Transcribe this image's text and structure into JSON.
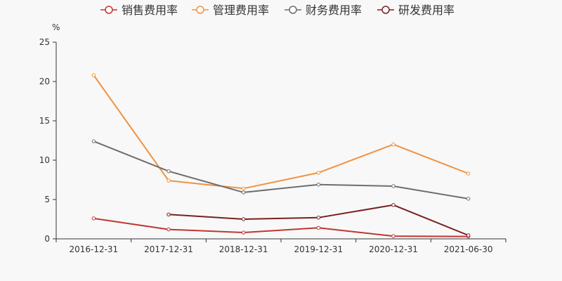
{
  "chart_data": {
    "type": "line",
    "ylabel": "%",
    "ylim": [
      0,
      25
    ],
    "yticks": [
      0,
      5,
      10,
      15,
      20,
      25
    ],
    "categories": [
      "2016-12-31",
      "2017-12-31",
      "2018-12-31",
      "2019-12-31",
      "2020-12-31",
      "2021-06-30"
    ],
    "grid": false,
    "legend_position": "top-center",
    "series": [
      {
        "name": "销售费用率",
        "color": "#c23531",
        "values": [
          2.6,
          1.2,
          0.8,
          1.4,
          0.35,
          0.3
        ]
      },
      {
        "name": "管理费用率",
        "color": "#f2913d",
        "values": [
          20.8,
          7.4,
          6.4,
          8.4,
          12.0,
          8.3
        ]
      },
      {
        "name": "财务费用率",
        "color": "#6e6e6e",
        "values": [
          12.4,
          8.6,
          5.9,
          6.9,
          6.7,
          5.1
        ]
      },
      {
        "name": "研发费用率",
        "color": "#7a1f1f",
        "values": [
          null,
          3.1,
          2.5,
          2.7,
          4.3,
          0.45
        ]
      }
    ]
  }
}
